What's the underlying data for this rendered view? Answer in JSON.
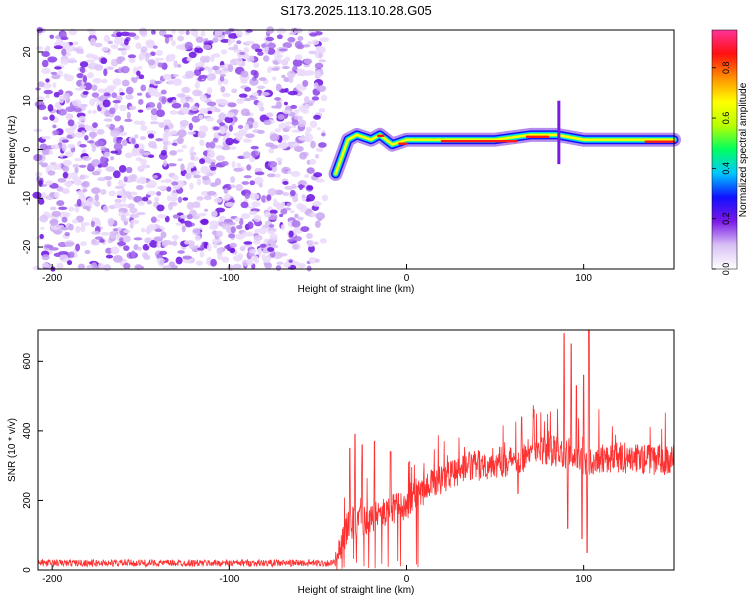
{
  "title": "S173.2025.113.10.28.G05",
  "chart_data": [
    {
      "type": "heatmap",
      "name": "spectrogram",
      "xlabel": "Height of straight line (km)",
      "ylabel": "Frequency (Hz)",
      "xlim": [
        -208,
        151
      ],
      "ylim": [
        -24.5,
        24.5
      ],
      "xticks": [
        -200,
        -100,
        0,
        100
      ],
      "xtick_labels": [
        "-200",
        "-100",
        "0",
        "100"
      ],
      "yticks": [
        20,
        10,
        0,
        -10,
        -20
      ],
      "ytick_labels": [
        "20",
        "10",
        "0",
        "-10",
        "-20"
      ],
      "colorbar": {
        "label": "Normalized spectral amplitude",
        "range": [
          0,
          0.95
        ],
        "ticks": [
          0,
          0.2,
          0.4,
          0.6,
          0.8
        ],
        "tick_labels": [
          "0.0",
          "0.2",
          "0.4",
          "0.6",
          "0.8"
        ],
        "colors": [
          "#ffffff",
          "#d8c0f5",
          "#7a18e6",
          "#1010ff",
          "#00c8ff",
          "#00ff60",
          "#b8ff00",
          "#ffff00",
          "#ff9000",
          "#ff1010",
          "#ff3399"
        ]
      },
      "noise_region_x": [
        -208,
        -47
      ],
      "tone_trace": [
        {
          "x": -40,
          "f": -5
        },
        {
          "x": -37,
          "f": -2
        },
        {
          "x": -33,
          "f": 2
        },
        {
          "x": -28,
          "f": 3
        },
        {
          "x": -20,
          "f": 2
        },
        {
          "x": -15,
          "f": 3
        },
        {
          "x": -8,
          "f": 1
        },
        {
          "x": 0,
          "f": 2
        },
        {
          "x": 10,
          "f": 2
        },
        {
          "x": 30,
          "f": 2
        },
        {
          "x": 50,
          "f": 2
        },
        {
          "x": 70,
          "f": 3
        },
        {
          "x": 85,
          "f": 3
        },
        {
          "x": 100,
          "f": 2
        },
        {
          "x": 120,
          "f": 2
        },
        {
          "x": 151,
          "f": 2
        }
      ]
    },
    {
      "type": "line",
      "name": "snr",
      "xlabel": "Height of straight line (km)",
      "ylabel": "SNR (10 * v/v)",
      "color": "#ff3030",
      "xlim": [
        -208,
        151
      ],
      "ylim": [
        0,
        690
      ],
      "xticks": [
        -200,
        -100,
        0,
        100
      ],
      "xtick_labels": [
        "-200",
        "-100",
        "0",
        "100"
      ],
      "yticks": [
        0,
        200,
        400,
        600
      ],
      "ytick_labels": [
        "0",
        "200",
        "400",
        "600"
      ],
      "envelope": [
        {
          "x": -208,
          "y": 20
        },
        {
          "x": -40,
          "y": 20
        },
        {
          "x": -33,
          "y": 130
        },
        {
          "x": -20,
          "y": 150
        },
        {
          "x": -10,
          "y": 170
        },
        {
          "x": 0,
          "y": 190
        },
        {
          "x": 10,
          "y": 230
        },
        {
          "x": 20,
          "y": 265
        },
        {
          "x": 30,
          "y": 290
        },
        {
          "x": 45,
          "y": 305
        },
        {
          "x": 60,
          "y": 315
        },
        {
          "x": 70,
          "y": 335
        },
        {
          "x": 80,
          "y": 345
        },
        {
          "x": 90,
          "y": 330
        },
        {
          "x": 100,
          "y": 310
        },
        {
          "x": 110,
          "y": 325
        },
        {
          "x": 130,
          "y": 320
        },
        {
          "x": 151,
          "y": 315
        }
      ],
      "spikes": [
        {
          "x": -32,
          "y": 350
        },
        {
          "x": -29,
          "y": 390
        },
        {
          "x": -25,
          "y": 360
        },
        {
          "x": -18,
          "y": 370
        },
        {
          "x": -9,
          "y": 340
        },
        {
          "x": 65,
          "y": 440
        },
        {
          "x": 89,
          "y": 680
        },
        {
          "x": 93,
          "y": 650
        },
        {
          "x": 96,
          "y": 530
        },
        {
          "x": 100,
          "y": 560
        },
        {
          "x": 103,
          "y": 690
        }
      ],
      "dips": [
        {
          "x": 63,
          "y": 220
        },
        {
          "x": 91,
          "y": 120
        },
        {
          "x": 99,
          "y": 90
        },
        {
          "x": 102,
          "y": 50
        }
      ]
    }
  ]
}
